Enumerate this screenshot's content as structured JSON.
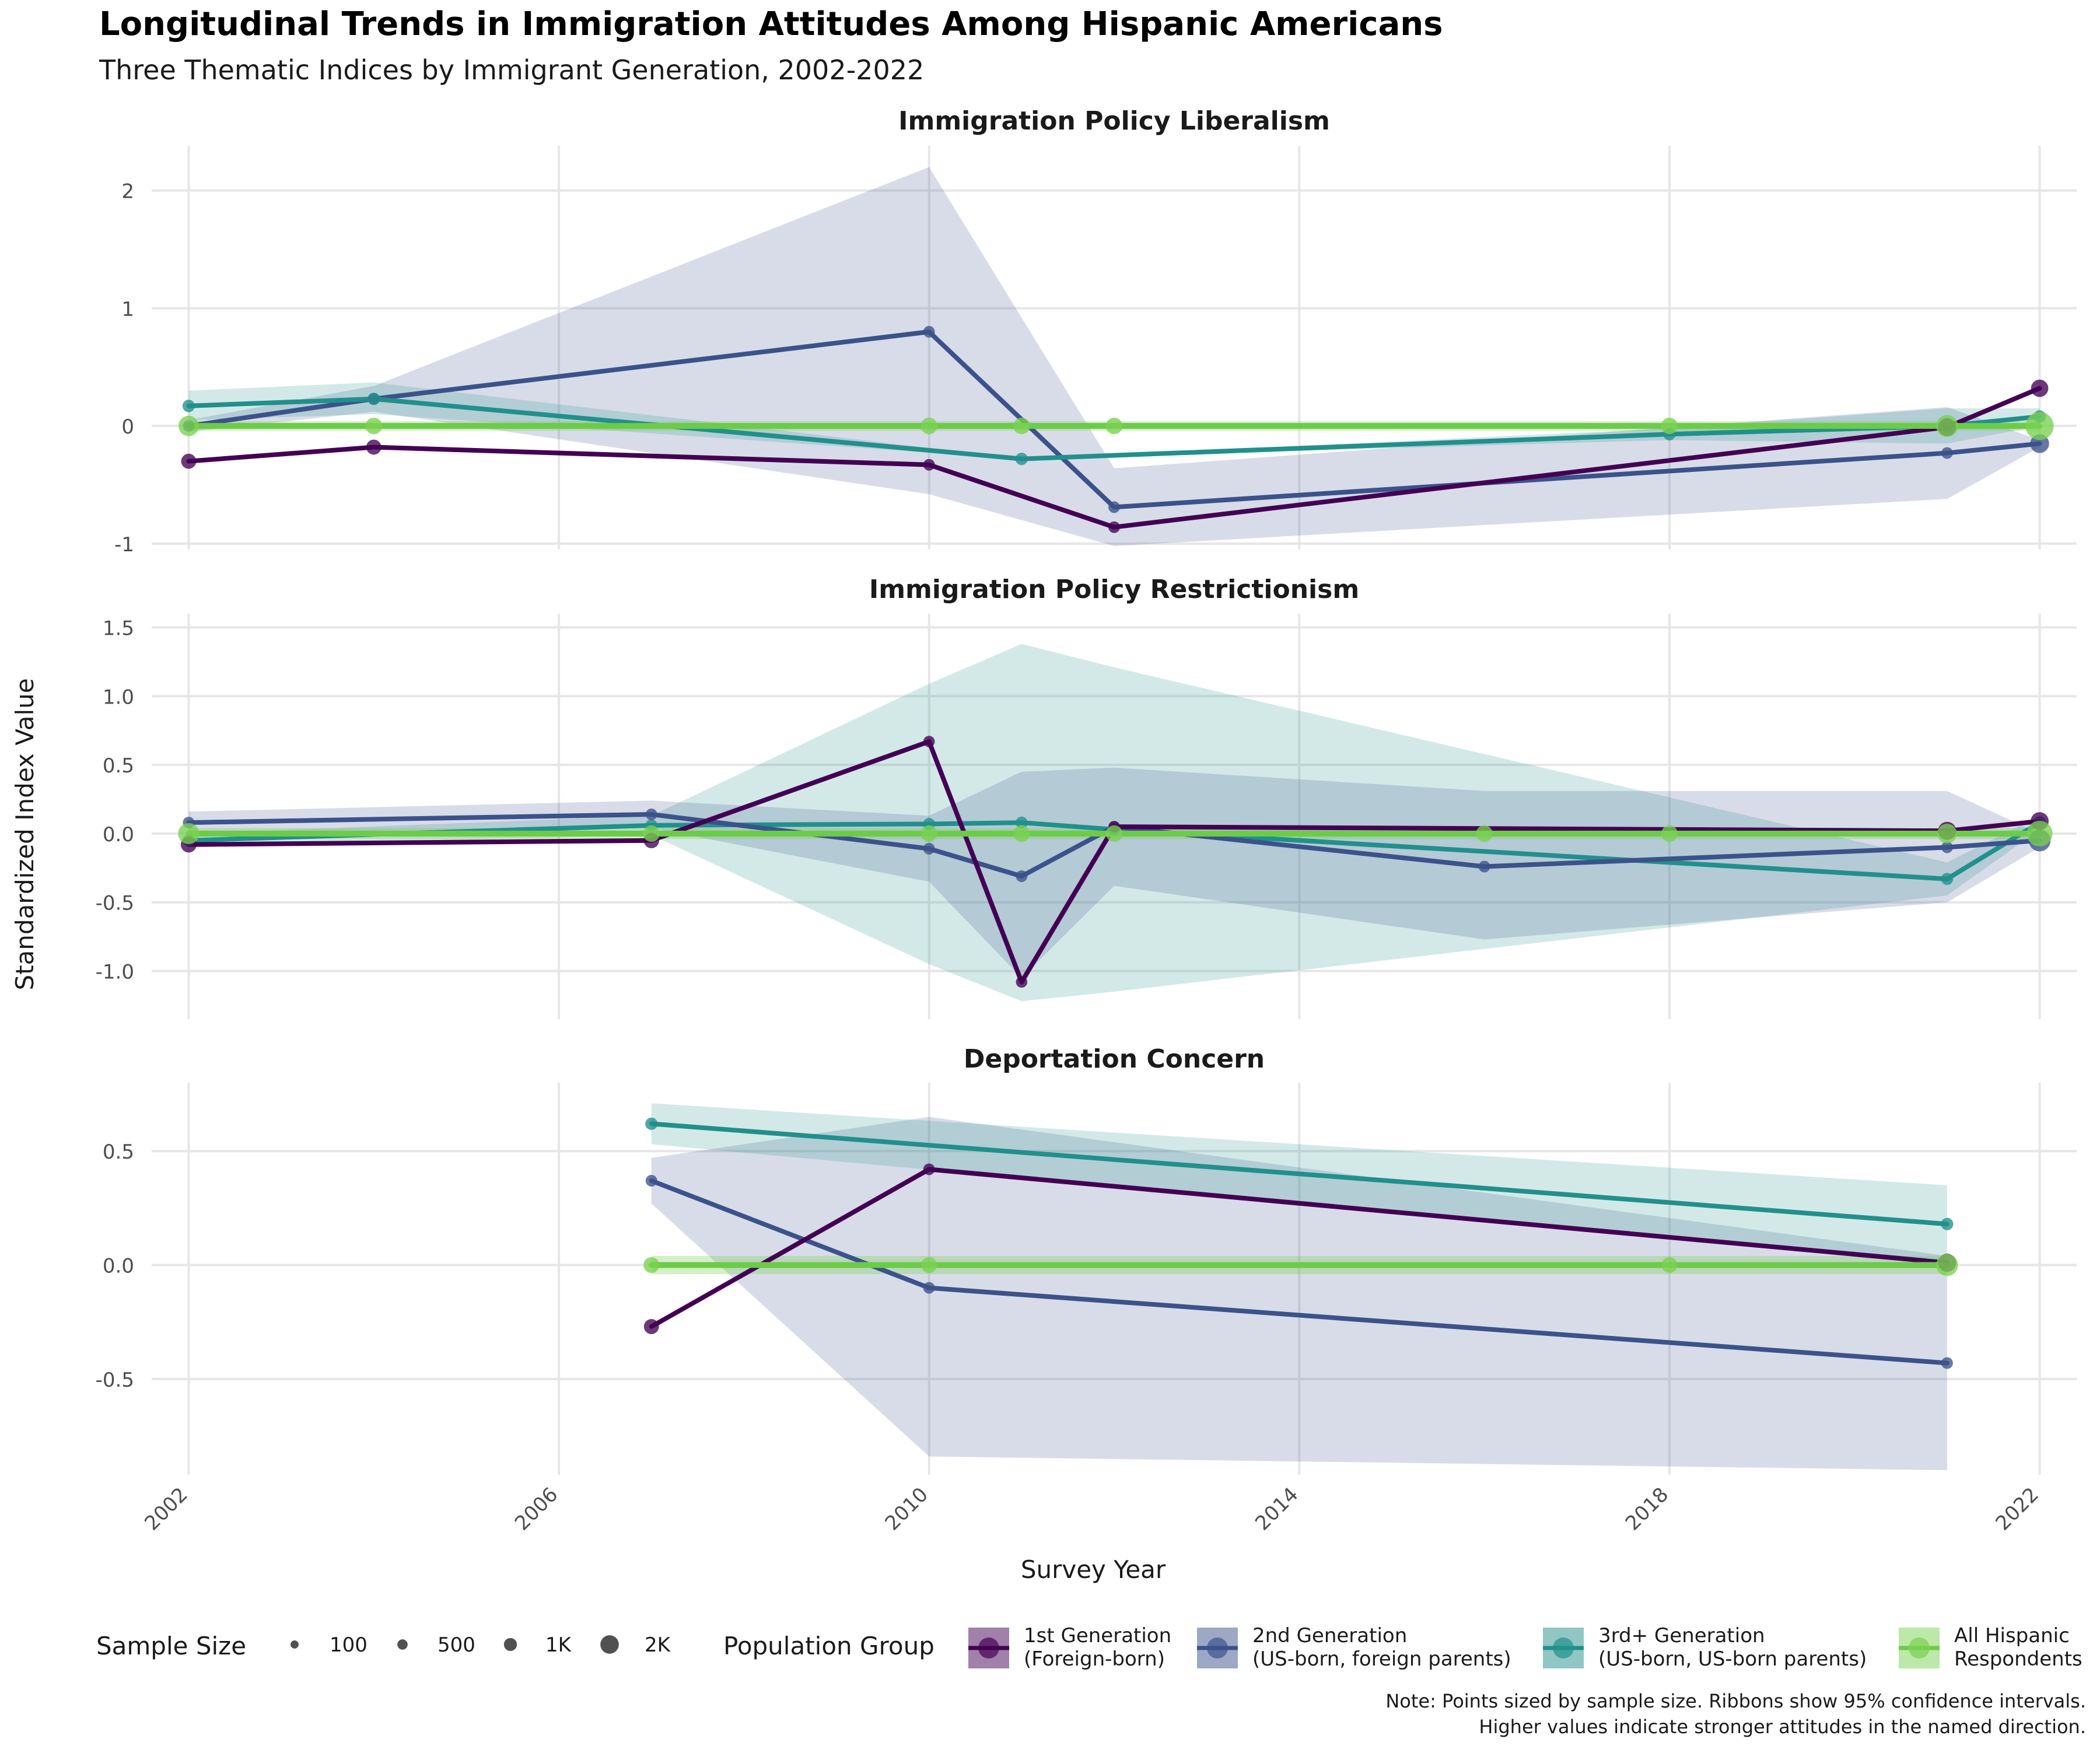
{
  "title": "Longitudinal Trends in Immigration Attitudes Among Hispanic Americans",
  "subtitle": "Three Thematic Indices by Immigrant Generation, 2002-2022",
  "caption": [
    "Note: Points sized by sample size. Ribbons show 95% confidence intervals.",
    "Higher values indicate stronger attitudes in the named direction."
  ],
  "colors": {
    "gen1": "#440154",
    "gen2": "#3B528B",
    "gen3": "#21908C",
    "all": "#7AD151",
    "all_line": "#6CCB48",
    "grid": "#E6E6E6",
    "text": "#1a1a1a",
    "axis_text": "#4d4d4d"
  },
  "chart_data": {
    "type": "line",
    "xlabel": "Survey Year",
    "ylabel": "Standardized Index Value",
    "x_ticks": [
      2002,
      2006,
      2010,
      2014,
      2018,
      2022
    ],
    "xlim": [
      2001.6,
      2022.4
    ],
    "grid": true,
    "size_legend": {
      "title": "Sample Size",
      "entries": [
        {
          "label": "100",
          "n": 100
        },
        {
          "label": "500",
          "n": 500
        },
        {
          "label": "1K",
          "n": 1000
        },
        {
          "label": "2K",
          "n": 2000
        }
      ]
    },
    "color_legend": {
      "title": "Population Group",
      "entries": [
        {
          "key": "gen1",
          "lines": [
            "1st Generation",
            "(Foreign-born)"
          ]
        },
        {
          "key": "gen2",
          "lines": [
            "2nd Generation",
            "(US-born, foreign parents)"
          ]
        },
        {
          "key": "gen3",
          "lines": [
            "3rd+ Generation",
            "(US-born, US-born parents)"
          ]
        },
        {
          "key": "all",
          "lines": [
            "All Hispanic",
            "Respondents"
          ]
        }
      ]
    },
    "panels": [
      {
        "title": "Immigration Policy Liberalism",
        "ylim": [
          -1.05,
          2.38
        ],
        "y_ticks": [
          -1,
          0,
          1,
          2
        ],
        "y_tick_labels": [
          "-1",
          "0",
          "1",
          "2"
        ],
        "series": [
          {
            "key": "gen2",
            "x": [
              2002,
              2004,
              2010,
              2012,
              2021,
              2022
            ],
            "y": [
              0,
              0.23,
              0.8,
              -0.69,
              -0.23,
              -0.15
            ],
            "lo": [
              -0.05,
              0.12,
              -0.58,
              -1.02,
              -0.62,
              -0.18
            ],
            "hi": [
              0.05,
              0.34,
              2.2,
              -0.36,
              0.16,
              -0.12
            ],
            "n": [
              150,
              150,
              150,
              150,
              150,
              1100
            ]
          },
          {
            "key": "gen3",
            "x": [
              2002,
              2004,
              2011,
              2018,
              2021,
              2022
            ],
            "y": [
              0.17,
              0.23,
              -0.28,
              -0.07,
              0,
              0.08
            ],
            "lo": [
              0.05,
              0.1,
              -0.28,
              -0.12,
              -0.15,
              0
            ],
            "hi": [
              0.3,
              0.37,
              -0.28,
              -0.02,
              0.15,
              0.15
            ],
            "n": [
              250,
              250,
              250,
              250,
              250,
              250
            ]
          },
          {
            "key": "gen1",
            "x": [
              2002,
              2004,
              2010,
              2012,
              2021,
              2022
            ],
            "y": [
              -0.3,
              -0.18,
              -0.33,
              -0.86,
              -0.01,
              0.32
            ],
            "n": [
              600,
              600,
              150,
              150,
              1000,
              900
            ]
          },
          {
            "key": "all",
            "x": [
              2002,
              2004,
              2010,
              2011,
              2012,
              2018,
              2021,
              2022
            ],
            "y": [
              0,
              0,
              0,
              0,
              0,
              0,
              0,
              0
            ],
            "lo": [
              -0.04,
              -0.04,
              -0.04,
              -0.04,
              -0.04,
              -0.04,
              -0.04,
              -0.04
            ],
            "hi": [
              0.04,
              0.04,
              0.04,
              0.04,
              0.04,
              0.04,
              0.04,
              0.04
            ],
            "n": [
              1300,
              800,
              800,
              800,
              800,
              800,
              1500,
              2300
            ]
          }
        ]
      },
      {
        "title": "Immigration Policy Restrictionism",
        "ylim": [
          -1.35,
          1.6
        ],
        "y_ticks": [
          -1.0,
          -0.5,
          0.0,
          0.5,
          1.0,
          1.5
        ],
        "y_tick_labels": [
          "-1.0",
          "-0.5",
          "0.0",
          "0.5",
          "1.0",
          "1.5"
        ],
        "series": [
          {
            "key": "gen3",
            "x": [
              2002,
              2007,
              2010,
              2011,
              2012,
              2021,
              2022
            ],
            "y": [
              -0.05,
              0.06,
              0.07,
              0.08,
              0.03,
              -0.33,
              0.08
            ],
            "lo": [
              -0.1,
              -0.01,
              -0.95,
              -1.22,
              -1.15,
              -0.45,
              0.03
            ],
            "hi": [
              0,
              0.13,
              1.09,
              1.38,
              1.21,
              -0.21,
              0.13
            ],
            "n": [
              200,
              200,
              200,
              200,
              200,
              200,
              300
            ]
          },
          {
            "key": "gen2",
            "x": [
              2002,
              2007,
              2010,
              2011,
              2012,
              2016,
              2021,
              2022
            ],
            "y": [
              0.08,
              0.14,
              -0.11,
              -0.31,
              0.05,
              -0.24,
              -0.1,
              -0.05
            ],
            "lo": [
              0,
              0.04,
              -0.35,
              -1.05,
              -0.38,
              -0.77,
              -0.5,
              -0.1
            ],
            "hi": [
              0.16,
              0.24,
              0.13,
              0.45,
              0.48,
              0.31,
              0.31,
              0
            ],
            "n": [
              150,
              150,
              150,
              150,
              150,
              150,
              150,
              1500
            ]
          },
          {
            "key": "gen1",
            "x": [
              2002,
              2007,
              2010,
              2011,
              2012,
              2021,
              2022
            ],
            "y": [
              -0.08,
              -0.05,
              0.67,
              -1.08,
              0.05,
              0.02,
              0.09
            ],
            "n": [
              700,
              650,
              120,
              120,
              120,
              1000,
              1000
            ]
          },
          {
            "key": "all",
            "x": [
              2002,
              2007,
              2010,
              2011,
              2012,
              2016,
              2018,
              2021,
              2022
            ],
            "y": [
              0,
              0,
              0,
              0,
              0,
              0,
              0,
              0,
              0
            ],
            "lo": [
              -0.04,
              -0.04,
              -0.04,
              -0.04,
              -0.04,
              -0.04,
              -0.04,
              -0.04,
              -0.04
            ],
            "hi": [
              0.04,
              0.04,
              0.04,
              0.04,
              0.04,
              0.04,
              0.04,
              0.04,
              0.04
            ],
            "n": [
              1400,
              800,
              800,
              800,
              800,
              800,
              800,
              1200,
              2000
            ]
          }
        ]
      },
      {
        "title": "Deportation Concern",
        "ylim": [
          -0.92,
          0.8
        ],
        "y_ticks": [
          -0.5,
          0.0,
          0.5
        ],
        "y_tick_labels": [
          "-0.5",
          "0.0",
          "0.5"
        ],
        "series": [
          {
            "key": "gen2",
            "x": [
              2007,
              2010,
              2021
            ],
            "y": [
              0.37,
              -0.1,
              -0.43
            ],
            "lo": [
              0.27,
              -0.84,
              -0.9
            ],
            "hi": [
              0.47,
              0.65,
              0.04
            ],
            "n": [
              150,
              150,
              150
            ]
          },
          {
            "key": "gen3",
            "x": [
              2007,
              2021
            ],
            "y": [
              0.62,
              0.18
            ],
            "lo": [
              0.53,
              0.01
            ],
            "hi": [
              0.71,
              0.35
            ],
            "n": [
              250,
              250
            ]
          },
          {
            "key": "gen1",
            "x": [
              2007,
              2010,
              2021
            ],
            "y": [
              -0.27,
              0.42,
              0.01
            ],
            "n": [
              600,
              150,
              1000
            ]
          },
          {
            "key": "all",
            "x": [
              2007,
              2010,
              2018,
              2021
            ],
            "y": [
              0,
              0,
              0,
              0
            ],
            "lo": [
              -0.04,
              -0.04,
              -0.04,
              -0.04
            ],
            "hi": [
              0.04,
              0.04,
              0.04,
              0.04
            ],
            "n": [
              700,
              700,
              700,
              1500
            ]
          }
        ]
      }
    ]
  }
}
